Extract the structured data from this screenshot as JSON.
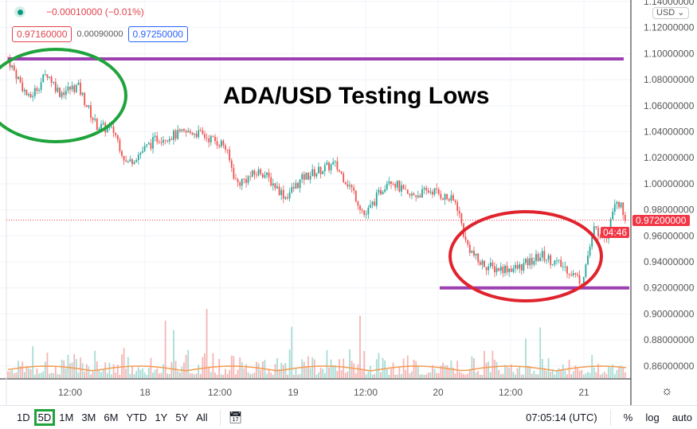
{
  "legend": {
    "change": "−0.00010000 (−0.01%)",
    "sell": "0.97160000",
    "spread": "0.00090000",
    "buy": "0.97250000"
  },
  "currency": "USD ⌄",
  "annotation": {
    "title": "ADA/USD Testing Lows",
    "resistance_color": "#9c3fb0",
    "top_circle_color": "#1fa33c",
    "bottom_circle_color": "#e0242e"
  },
  "price_axis": [
    "1.14000000",
    "1.12000000",
    "1.10000000",
    "1.08000000",
    "1.06000000",
    "1.04000000",
    "1.02000000",
    "1.00000000",
    "0.98000000",
    "0.96000000",
    "0.94000000",
    "0.92000000",
    "0.90000000",
    "0.88000000",
    "0.86000000"
  ],
  "time_axis": [
    "12:00",
    "18",
    "12:00",
    "19",
    "12:00",
    "20",
    "12:00",
    "21"
  ],
  "current_price": {
    "value": "0.97200000",
    "countdown": "04:46",
    "color": "#f23645"
  },
  "ranges": [
    "1D",
    "5D",
    "1M",
    "3M",
    "6M",
    "YTD",
    "1Y",
    "5Y",
    "All"
  ],
  "selected_range": "5D",
  "clock": "07:05:14 (UTC)",
  "scale_options": [
    "%",
    "log",
    "auto"
  ],
  "icons": {
    "settings": "gear-icon",
    "goto_date": "calendar-arrow-icon"
  },
  "chart_data": {
    "type": "candlestick",
    "approx_close_path": [
      [
        "17 02:00",
        1.092
      ],
      [
        "17 05:00",
        1.065
      ],
      [
        "17 08:00",
        1.085
      ],
      [
        "17 10:00",
        1.07
      ],
      [
        "17 13:00",
        1.075
      ],
      [
        "17 16:00",
        1.045
      ],
      [
        "17 19:00",
        1.04
      ],
      [
        "17 21:00",
        1.015
      ],
      [
        "18 02:00",
        1.035
      ],
      [
        "18 08:00",
        1.04
      ],
      [
        "18 13:00",
        1.03
      ],
      [
        "18 15:00",
        1.0
      ],
      [
        "18 19:00",
        1.01
      ],
      [
        "18 23:00",
        0.99
      ],
      [
        "19 02:00",
        1.005
      ],
      [
        "19 07:00",
        1.015
      ],
      [
        "19 10:00",
        0.995
      ],
      [
        "19 12:00",
        0.975
      ],
      [
        "19 16:00",
        1.005
      ],
      [
        "19 19:00",
        0.99
      ],
      [
        "19 23:00",
        0.995
      ],
      [
        "20 03:00",
        0.985
      ],
      [
        "20 04:30",
        0.955
      ],
      [
        "20 06:30",
        0.94
      ],
      [
        "20 09:00",
        0.935
      ],
      [
        "20 13:00",
        0.935
      ],
      [
        "20 17:00",
        0.945
      ],
      [
        "20 21:00",
        0.935
      ],
      [
        "20 23:30",
        0.925
      ],
      [
        "21 01:30",
        0.965
      ],
      [
        "21 03:30",
        0.96
      ],
      [
        "21 05:00",
        0.99
      ],
      [
        "21 07:00",
        0.972
      ]
    ],
    "resistance": 1.096,
    "support": 0.92,
    "ylim": [
      0.85,
      1.14
    ],
    "up_color": "#26a69a",
    "down_color": "#ef5350"
  }
}
